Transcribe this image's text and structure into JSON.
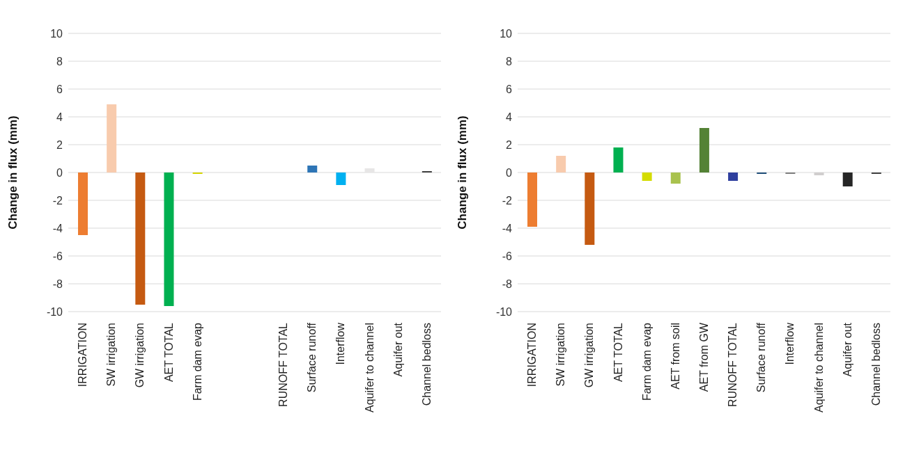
{
  "chart_data": [
    {
      "type": "bar",
      "ylabel": "Change in flux (mm)",
      "categories": [
        "IRRIGATION",
        "SW irrigation",
        "GW irrigation",
        "AET TOTAL",
        "Farm dam evap",
        null,
        null,
        "RUNOFF TOTAL",
        "Surface runoff",
        "Interflow",
        "Aquifer to channel",
        "Aquifer out",
        "Channel bedloss"
      ],
      "values": [
        -4.5,
        4.9,
        -9.5,
        -9.6,
        -0.1,
        null,
        null,
        0,
        0.5,
        -0.9,
        0.3,
        0,
        0.1
      ],
      "colors": [
        "#ed7d31",
        "#f8cbad",
        "#c55a11",
        "#00b050",
        "#d4d400",
        "#ffffff",
        "#ffffff",
        "#1f4e79",
        "#2e75b6",
        "#00b0f0",
        "#e7e6e6",
        "#262626",
        "#404040"
      ],
      "ylim": [
        -10,
        10
      ],
      "yticks": [
        -10,
        -8,
        -6,
        -4,
        -2,
        0,
        2,
        4,
        6,
        8,
        10
      ],
      "grid": "y"
    },
    {
      "type": "bar",
      "ylabel": "Change in flux (mm)",
      "categories": [
        "IRRIGATION",
        "SW irrigation",
        "GW irrigation",
        "AET TOTAL",
        "Farm dam evap",
        "AET from soil",
        "AET from GW",
        "RUNOFF TOTAL",
        "Surface runoff",
        "Interflow",
        "Aquifer to channel",
        "Aquifer out",
        "Channel bedloss"
      ],
      "values": [
        -3.9,
        1.2,
        -5.2,
        1.8,
        -0.6,
        -0.8,
        3.2,
        -0.6,
        -0.1,
        -0.1,
        -0.2,
        -1.0,
        -0.1
      ],
      "colors": [
        "#ed7d31",
        "#f8cbad",
        "#c55a11",
        "#00b050",
        "#d4dc00",
        "#a9c24e",
        "#548235",
        "#2f3f9e",
        "#1f4e79",
        "#7f7f7f",
        "#d0cece",
        "#262626",
        "#404040"
      ],
      "ylim": [
        -10,
        10
      ],
      "yticks": [
        -10,
        -8,
        -6,
        -4,
        -2,
        0,
        2,
        4,
        6,
        8,
        10
      ],
      "grid": "y"
    }
  ]
}
